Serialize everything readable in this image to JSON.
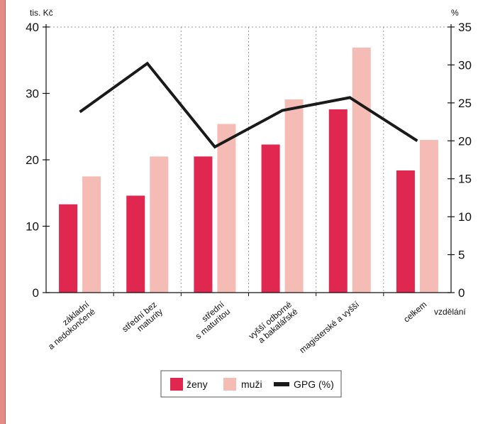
{
  "chart_data": {
    "type": "bar",
    "categories": [
      [
        "základní",
        "a nedokončené"
      ],
      [
        "střední bez",
        "maturity"
      ],
      [
        "střední",
        "s maturitou"
      ],
      [
        "vyšší odborné",
        "a bakalářské"
      ],
      [
        "magisterské a vyšší"
      ],
      [
        "celkem"
      ]
    ],
    "series": [
      {
        "name": "ženy",
        "type": "bar",
        "axis": "left",
        "color": "#e0274f",
        "values": [
          13.3,
          14.6,
          20.5,
          22.3,
          27.6,
          18.4
        ]
      },
      {
        "name": "muži",
        "type": "bar",
        "axis": "left",
        "color": "#f5bcb5",
        "values": [
          17.5,
          20.5,
          25.4,
          29.1,
          36.9,
          23.0
        ]
      },
      {
        "name": "GPG (%)",
        "type": "line",
        "axis": "right",
        "color": "#1a1a1a",
        "values": [
          23.8,
          30.2,
          19.2,
          24.0,
          25.7,
          20.0
        ]
      }
    ],
    "y_left": {
      "label": "tis. Kč",
      "min": 0,
      "max": 40,
      "ticks": [
        0,
        10,
        20,
        30,
        40
      ]
    },
    "y_right": {
      "label": "%",
      "min": 0,
      "max": 35,
      "ticks": [
        0,
        5,
        10,
        15,
        20,
        25,
        30,
        35
      ]
    },
    "xlabel": "vzdělání",
    "grid": "vertical dotted",
    "legend": "bottom-center"
  }
}
